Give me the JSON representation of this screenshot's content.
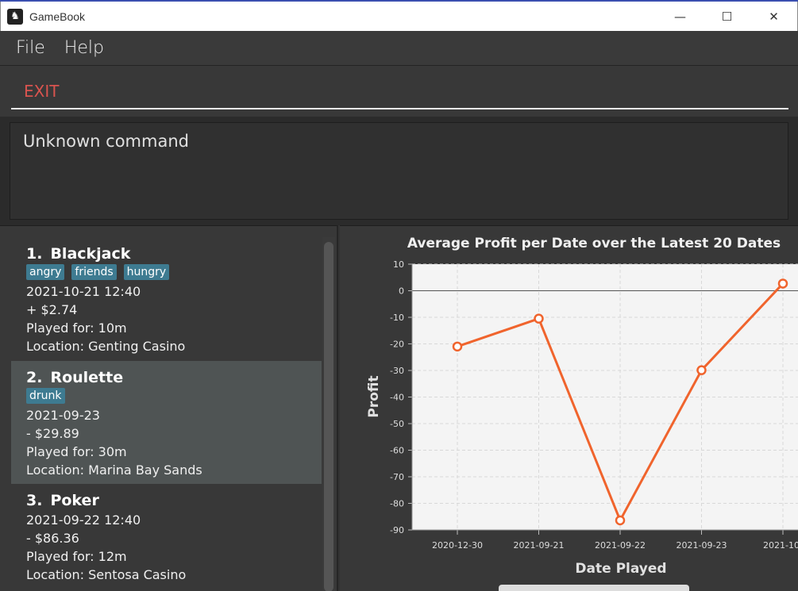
{
  "window": {
    "title": "GameBook",
    "minimize": "—",
    "maximize": "☐",
    "close": "✕"
  },
  "menu": {
    "items": [
      "File",
      "Help"
    ]
  },
  "command": {
    "value": "EXIT"
  },
  "result": {
    "text": "Unknown command"
  },
  "games": [
    {
      "index": "1.",
      "name": "Blackjack",
      "tags": [
        "angry",
        "friends",
        "hungry"
      ],
      "datetime": "2021-10-21 12:40",
      "profit": "+ $2.74",
      "played_for": "Played for: 10m",
      "location": "Location: Genting Casino",
      "selected": false
    },
    {
      "index": "2.",
      "name": "Roulette",
      "tags": [
        "drunk"
      ],
      "datetime": "2021-09-23",
      "profit": "- $29.89",
      "played_for": "Played for: 30m",
      "location": "Location: Marina Bay Sands",
      "selected": true
    },
    {
      "index": "3.",
      "name": "Poker",
      "tags": [],
      "datetime": "2021-09-22 12:40",
      "profit": "- $86.36",
      "played_for": "Played for: 12m",
      "location": "Location: Sentosa Casino",
      "selected": false
    }
  ],
  "chart_data": {
    "type": "line",
    "title": "Average Profit per Date over the Latest 20 Dates",
    "xlabel": "Date Played",
    "ylabel": "Profit",
    "categories": [
      "2020-12-30",
      "2021-09-21",
      "2021-09-22",
      "2021-09-23",
      "2021-10-"
    ],
    "values": [
      -21,
      -10.5,
      -86.4,
      -29.9,
      2.7
    ],
    "ylim": [
      -90,
      10
    ],
    "yticks": [
      10,
      0,
      -10,
      -20,
      -30,
      -40,
      -50,
      -60,
      -70,
      -80,
      -90
    ],
    "grid": true,
    "line_color": "#f0642d"
  }
}
